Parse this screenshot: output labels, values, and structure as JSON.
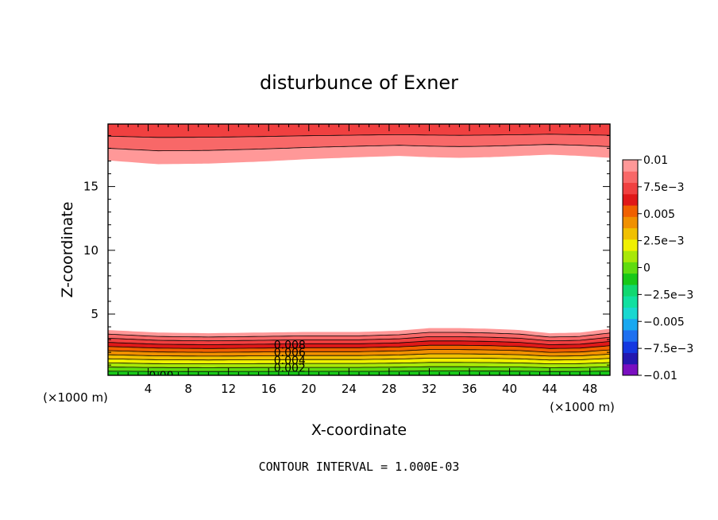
{
  "chart_data": {
    "type": "heatmap",
    "title": "disturbunce of Exner",
    "xlabel": "X-coordinate",
    "ylabel": "Z-coordinate",
    "x_unit": "(×1000 m)",
    "x_ticks": [
      4,
      8,
      12,
      16,
      20,
      24,
      28,
      32,
      36,
      40,
      44,
      48
    ],
    "y_ticks": [
      5,
      10,
      15
    ],
    "xlim": [
      0,
      50
    ],
    "ylim": [
      0.2,
      19.9
    ],
    "footer": "CONTOUR INTERVAL = 1.000E-03",
    "contour_interval": 0.001,
    "contour_labels": [
      {
        "text": "0.008",
        "x": 18.1,
        "z": 2.6
      },
      {
        "text": "0.006",
        "x": 18.1,
        "z": 2.0
      },
      {
        "text": "0.004",
        "x": 18.1,
        "z": 1.4
      },
      {
        "text": "0.002",
        "x": 18.1,
        "z": 0.8
      },
      {
        "text": "0.00",
        "x": 5.3,
        "z": 0.2
      }
    ],
    "colorbar": {
      "labels": [
        "0.01",
        "7.5e-3",
        "0.005",
        "2.5e-3",
        "0",
        "-2.5e-3",
        "-0.005",
        "-7.5e-3",
        "-0.01"
      ],
      "levels": [
        -0.01,
        0.01
      ],
      "colors": [
        "#7a0fc0",
        "#2418b0",
        "#1438e0",
        "#1e70f0",
        "#18a8f0",
        "#18d8d0",
        "#10e0a0",
        "#10d870",
        "#18c818",
        "#60dc10",
        "#a8e808",
        "#f0f000",
        "#f0c000",
        "#f09000",
        "#f06000",
        "#e01818",
        "#f04040",
        "#f86868",
        "#ff9898"
      ]
    },
    "surfaces": {
      "x": [
        0,
        5,
        10,
        15,
        20,
        25,
        29,
        32,
        35,
        38,
        41,
        44,
        47,
        50
      ],
      "lower_top_z": [
        3.75,
        3.55,
        3.5,
        3.55,
        3.6,
        3.6,
        3.7,
        3.9,
        3.9,
        3.85,
        3.75,
        3.5,
        3.55,
        3.85
      ],
      "upper_bottom_z": [
        17.05,
        16.75,
        16.8,
        16.95,
        17.15,
        17.3,
        17.4,
        17.3,
        17.25,
        17.3,
        17.4,
        17.5,
        17.4,
        17.25
      ]
    }
  }
}
